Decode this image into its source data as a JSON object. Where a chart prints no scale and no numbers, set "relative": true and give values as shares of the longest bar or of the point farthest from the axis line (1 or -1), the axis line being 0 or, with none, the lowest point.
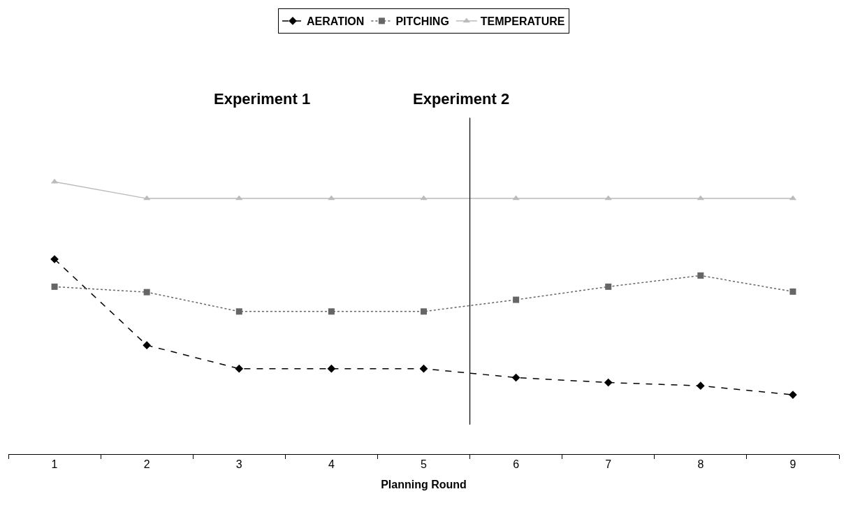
{
  "chart_data": {
    "type": "line",
    "relative": true,
    "xlabel": "Planning Round",
    "x": [
      1,
      2,
      3,
      4,
      5,
      6,
      7,
      8,
      9
    ],
    "xlim": [
      0.5,
      9.5
    ],
    "xticks": [
      1,
      2,
      3,
      4,
      5,
      6,
      7,
      8,
      9
    ],
    "tick_labels": "x",
    "legend": "top",
    "series": [
      {
        "name": "AERATION",
        "color": "#000000",
        "marker": "diamond",
        "line_style": "dashed",
        "values": [
          0.716,
          0.4,
          0.314,
          0.314,
          0.314,
          0.281,
          0.263,
          0.251,
          0.218
        ]
      },
      {
        "name": "PITCHING",
        "color": "#666666",
        "marker": "square",
        "line_style": "dotted",
        "values": [
          0.615,
          0.595,
          0.524,
          0.524,
          0.524,
          0.567,
          0.615,
          0.656,
          0.597
        ]
      },
      {
        "name": "TEMPERATURE",
        "color": "#bbbbbb",
        "marker": "triangle",
        "line_style": "solid",
        "values": [
          1,
          0.939,
          0.939,
          0.939,
          0.939,
          0.939,
          0.939,
          0.939,
          0.939
        ]
      }
    ],
    "ref_lines": [
      {
        "axis": "x",
        "value": 5.5,
        "color": "#000000"
      }
    ],
    "annotations": [
      "Experiment 1",
      "Experiment 2"
    ]
  }
}
